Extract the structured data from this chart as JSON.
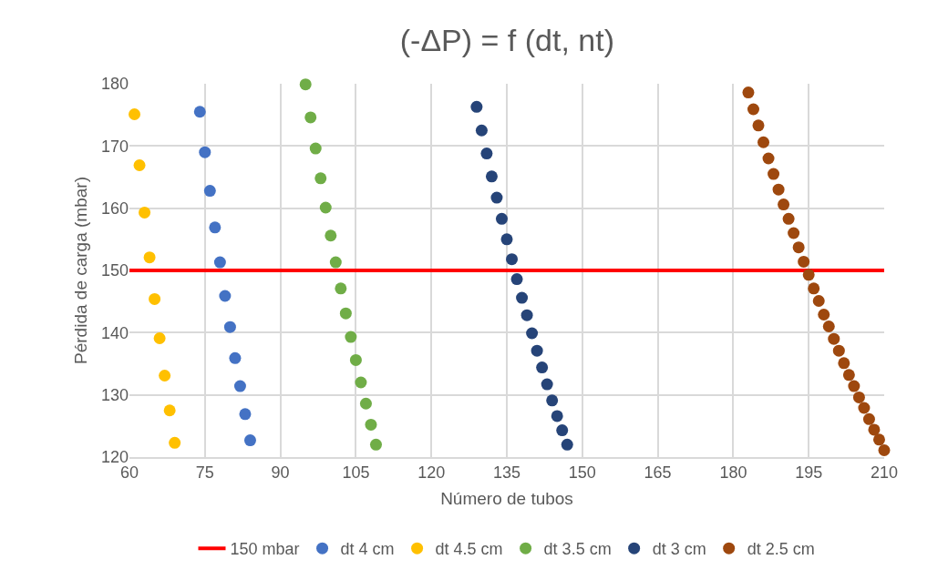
{
  "chart_data": {
    "type": "scatter",
    "title": "(-ΔP) = f (dt, nt)",
    "xlabel": "Número de tubos",
    "ylabel": "Pérdida de carga (mbar)",
    "xlim": [
      60,
      210
    ],
    "xticks": [
      60,
      75,
      90,
      105,
      120,
      135,
      150,
      165,
      180,
      195,
      210
    ],
    "ylim": [
      120,
      180
    ],
    "yticks": [
      120,
      130,
      140,
      150,
      160,
      170,
      180
    ],
    "grid": true,
    "legend": "bottom",
    "marker": "circle",
    "ref_lines": [
      {
        "axis": "y",
        "value": 150,
        "label": "150 mbar",
        "color": "#ff0000",
        "line_style": "solid"
      }
    ],
    "series": [
      {
        "name": "dt 4 cm",
        "color": "#4472c4",
        "x": [
          74,
          75,
          76,
          77,
          78,
          79,
          80,
          81,
          82,
          83,
          84
        ],
        "values": [
          175.5,
          169.0,
          162.8,
          156.9,
          151.3,
          145.9,
          140.9,
          135.9,
          131.4,
          126.9,
          122.7
        ]
      },
      {
        "name": "dt 4.5 cm",
        "color": "#ffc000",
        "x": [
          61,
          62,
          63,
          64,
          65,
          66,
          67,
          68,
          69
        ],
        "values": [
          175.1,
          166.9,
          159.3,
          152.1,
          145.4,
          139.1,
          133.1,
          127.5,
          122.3
        ]
      },
      {
        "name": "dt 3.5 cm",
        "color": "#70ad47",
        "x": [
          95,
          96,
          97,
          98,
          99,
          100,
          101,
          102,
          103,
          104,
          105,
          106,
          107,
          108,
          109
        ],
        "values": [
          179.9,
          174.6,
          169.6,
          164.8,
          160.1,
          155.6,
          151.3,
          147.1,
          143.1,
          139.3,
          135.6,
          132.0,
          128.6,
          125.2,
          122.0
        ]
      },
      {
        "name": "dt 3 cm",
        "color": "#264478",
        "x": [
          129,
          130,
          131,
          132,
          133,
          134,
          135,
          136,
          137,
          138,
          139,
          140,
          141,
          142,
          143,
          144,
          145,
          146,
          147
        ],
        "values": [
          176.3,
          172.5,
          168.8,
          165.1,
          161.7,
          158.3,
          155.0,
          151.8,
          148.6,
          145.6,
          142.8,
          139.9,
          137.1,
          134.4,
          131.7,
          129.1,
          126.6,
          124.3,
          122.0
        ]
      },
      {
        "name": "dt 2.5 cm",
        "color": "#9e480e",
        "x": [
          183,
          184,
          185,
          186,
          187,
          188,
          189,
          190,
          191,
          192,
          193,
          194,
          195,
          196,
          197,
          198,
          199,
          200,
          201,
          202,
          203,
          204,
          205,
          206,
          207,
          208,
          209,
          210
        ],
        "values": [
          178.6,
          175.9,
          173.3,
          170.6,
          168.0,
          165.5,
          163.0,
          160.6,
          158.3,
          156.0,
          153.7,
          151.4,
          149.3,
          147.1,
          145.1,
          142.9,
          141.0,
          139.0,
          137.1,
          135.1,
          133.2,
          131.4,
          129.6,
          127.9,
          126.1,
          124.4,
          122.8,
          121.1
        ]
      }
    ]
  }
}
